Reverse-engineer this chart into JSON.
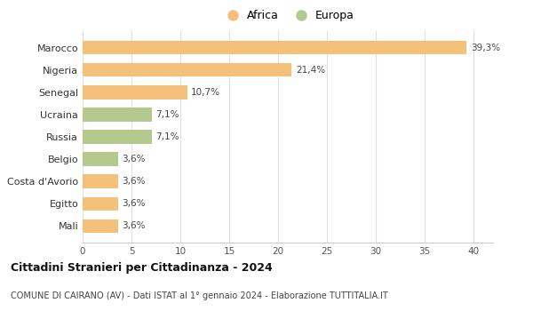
{
  "categories": [
    "Marocco",
    "Nigeria",
    "Senegal",
    "Ucraina",
    "Russia",
    "Belgio",
    "Costa d'Avorio",
    "Egitto",
    "Mali"
  ],
  "values": [
    39.3,
    21.4,
    10.7,
    7.1,
    7.1,
    3.6,
    3.6,
    3.6,
    3.6
  ],
  "labels": [
    "39,3%",
    "21,4%",
    "10,7%",
    "7,1%",
    "7,1%",
    "3,6%",
    "3,6%",
    "3,6%",
    "3,6%"
  ],
  "continents": [
    "Africa",
    "Africa",
    "Africa",
    "Europa",
    "Europa",
    "Europa",
    "Africa",
    "Africa",
    "Africa"
  ],
  "color_africa": "#F5C07A",
  "color_europa": "#B5C98E",
  "title": "Cittadini Stranieri per Cittadinanza - 2024",
  "subtitle": "COMUNE DI CAIRANO (AV) - Dati ISTAT al 1° gennaio 2024 - Elaborazione TUTTITALIA.IT",
  "xlim": [
    0,
    42
  ],
  "xticks": [
    0,
    5,
    10,
    15,
    20,
    25,
    30,
    35,
    40
  ],
  "background_color": "#ffffff",
  "grid_color": "#e0e0e0"
}
